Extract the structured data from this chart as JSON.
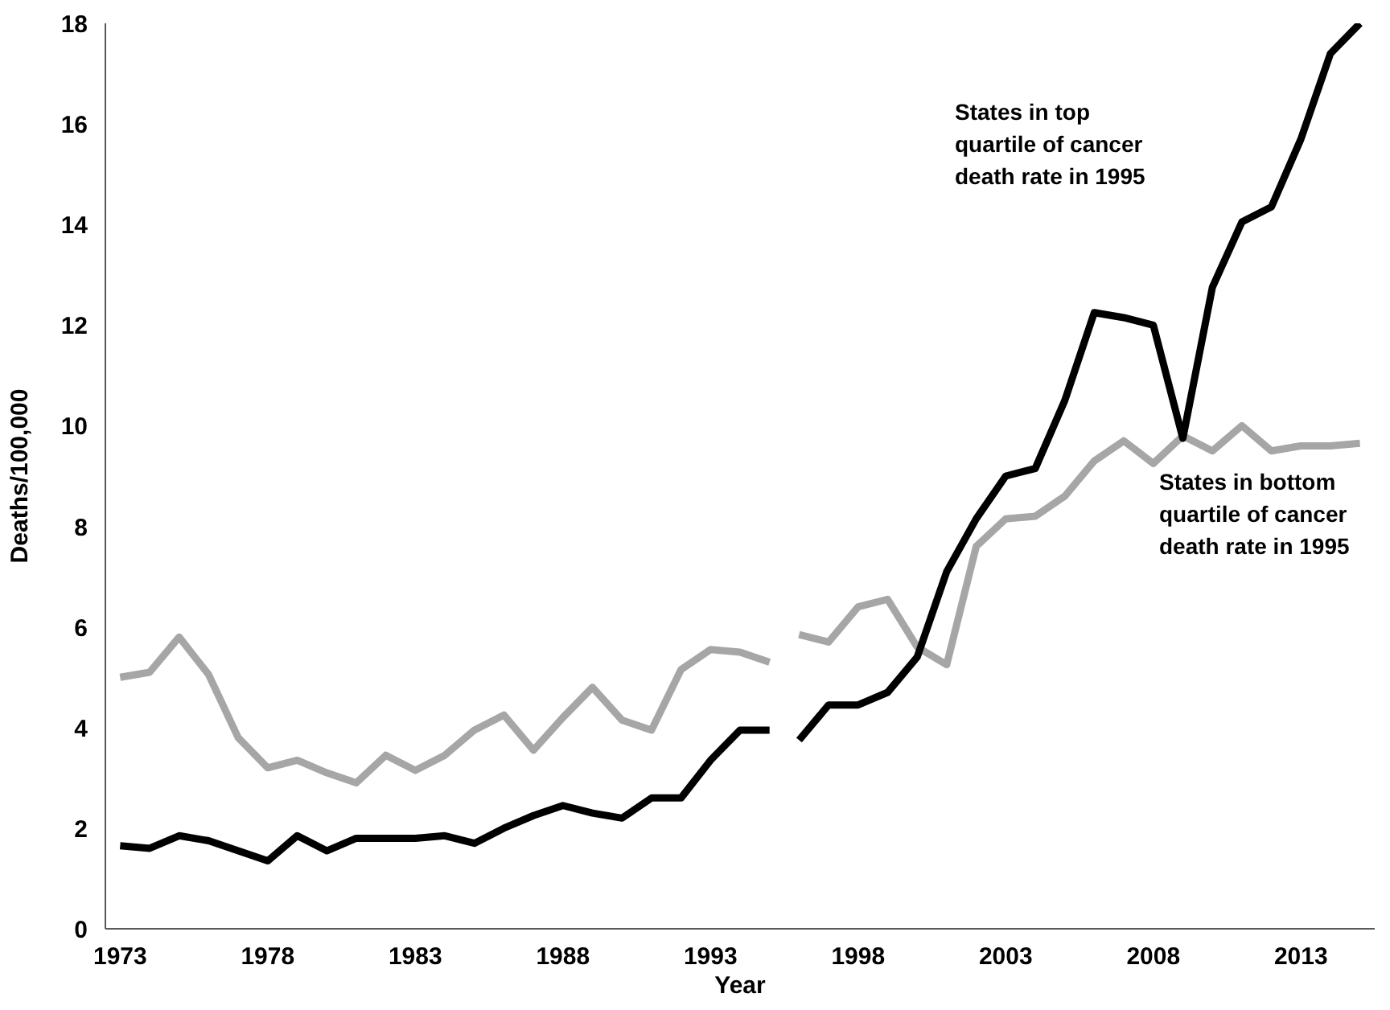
{
  "chart_data": {
    "type": "line",
    "xlabel": "Year",
    "ylabel": "Deaths/100,000",
    "xlim": [
      1972.5,
      2015.5
    ],
    "ylim": [
      0,
      18
    ],
    "xticks": [
      1973,
      1978,
      1983,
      1988,
      1993,
      1998,
      2003,
      2008,
      2013
    ],
    "yticks": [
      0,
      2,
      4,
      6,
      8,
      10,
      12,
      14,
      16,
      18
    ],
    "grid": false,
    "marker": "none",
    "line_style": "solid",
    "series": [
      {
        "color": "#a6a6a6",
        "x": [
          1973,
          1974,
          1975,
          1976,
          1977,
          1978,
          1979,
          1980,
          1981,
          1982,
          1983,
          1984,
          1985,
          1986,
          1987,
          1988,
          1989,
          1990,
          1991,
          1992,
          1993,
          1994,
          1995
        ],
        "values": [
          5.0,
          5.1,
          5.8,
          5.05,
          3.8,
          3.2,
          3.35,
          3.1,
          2.9,
          3.45,
          3.15,
          3.45,
          3.95,
          4.25,
          3.55,
          4.2,
          4.8,
          4.15,
          3.95,
          5.15,
          5.55,
          5.5,
          5.3
        ]
      },
      {
        "color": "#a6a6a6",
        "x": [
          1996,
          1997,
          1998,
          1999,
          2000,
          2001,
          2002,
          2003,
          2004,
          2005,
          2006,
          2007,
          2008,
          2009,
          2010,
          2011,
          2012,
          2013,
          2014,
          2015
        ],
        "values": [
          5.85,
          5.7,
          6.4,
          6.55,
          5.6,
          5.25,
          7.6,
          8.15,
          8.2,
          8.6,
          9.3,
          9.7,
          9.25,
          9.8,
          9.5,
          10.0,
          9.5,
          9.6,
          9.6,
          9.65
        ]
      },
      {
        "color": "#000000",
        "x": [
          1973,
          1974,
          1975,
          1976,
          1977,
          1978,
          1979,
          1980,
          1981,
          1982,
          1983,
          1984,
          1985,
          1986,
          1987,
          1988,
          1989,
          1990,
          1991,
          1992,
          1993,
          1994,
          1995
        ],
        "values": [
          1.65,
          1.6,
          1.85,
          1.75,
          1.55,
          1.35,
          1.85,
          1.55,
          1.8,
          1.8,
          1.8,
          1.85,
          1.7,
          2.0,
          2.25,
          2.45,
          2.3,
          2.2,
          2.6,
          2.6,
          3.35,
          3.95,
          3.95
        ]
      },
      {
        "color": "#000000",
        "x": [
          1996,
          1997,
          1998,
          1999,
          2000,
          2001,
          2002,
          2003,
          2004,
          2005,
          2006,
          2007,
          2008,
          2009,
          2010,
          2011,
          2012,
          2013,
          2014,
          2015
        ],
        "values": [
          3.75,
          4.45,
          4.45,
          4.7,
          5.4,
          7.1,
          8.15,
          9.0,
          9.15,
          10.5,
          12.25,
          12.15,
          12.0,
          9.75,
          12.75,
          14.05,
          14.35,
          15.7,
          17.4,
          18.0
        ]
      }
    ],
    "annotations": [
      "States in top\nquartile of cancer\ndeath rate in 1995",
      "States in bottom\nquartile of cancer\ndeath rate in 1995"
    ]
  }
}
